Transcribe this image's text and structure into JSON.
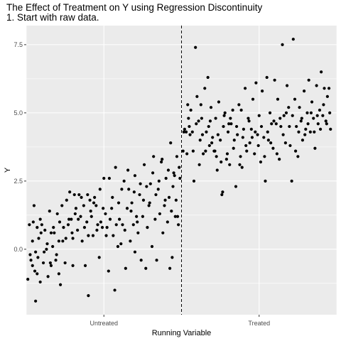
{
  "chart_data": {
    "type": "scatter",
    "title": "The Effect of Treatment on Y using Regression Discontinuity",
    "subtitle": "1. Start with raw data.",
    "xlabel": "Running Variable",
    "ylabel": "Y",
    "x_tick_labels": [
      "Untreated",
      "Treated"
    ],
    "y_ticks": [
      0.0,
      2.5,
      5.0,
      7.5
    ],
    "y_tick_labels": [
      "0.0",
      "2.5",
      "5.0",
      "7.5"
    ],
    "xlim": [
      -1,
      1
    ],
    "ylim": [
      -2.4,
      8.2
    ],
    "cutoff": 0,
    "cutoff_line_style": "dashed",
    "grid": true,
    "panel_background": "#ebebeb",
    "grid_color": "#ffffff",
    "point_color": "#000000",
    "points_untreated": [
      [
        -0.99,
        -1.1
      ],
      [
        -0.98,
        0.9
      ],
      [
        -0.97,
        -0.4
      ],
      [
        -0.96,
        0.3
      ],
      [
        -0.96,
        -0.6
      ],
      [
        -0.95,
        1.6
      ],
      [
        -0.94,
        -1.9
      ],
      [
        -0.94,
        -0.1
      ],
      [
        -0.93,
        0.8
      ],
      [
        -0.93,
        -0.9
      ],
      [
        -0.92,
        0.4
      ],
      [
        -0.91,
        -1.2
      ],
      [
        -0.91,
        1.1
      ],
      [
        -0.9,
        0.9
      ],
      [
        -0.89,
        -0.5
      ],
      [
        -0.88,
        0.7
      ],
      [
        -0.87,
        0.0
      ],
      [
        -0.86,
        -1.0
      ],
      [
        -0.85,
        1.4
      ],
      [
        -0.84,
        0.6
      ],
      [
        -0.84,
        -0.6
      ],
      [
        -0.83,
        0.1
      ],
      [
        -0.82,
        0.6
      ],
      [
        -0.81,
        -0.4
      ],
      [
        -0.8,
        1.3
      ],
      [
        -0.79,
        -0.9
      ],
      [
        -0.79,
        0.3
      ],
      [
        -0.78,
        -1.3
      ],
      [
        -0.77,
        1.6
      ],
      [
        -0.76,
        0.8
      ],
      [
        -0.75,
        -0.5
      ],
      [
        -0.74,
        1.8
      ],
      [
        -0.73,
        0.9
      ],
      [
        -0.72,
        2.1
      ],
      [
        -0.71,
        1.1
      ],
      [
        -0.7,
        -0.6
      ],
      [
        -0.7,
        0.4
      ],
      [
        -0.69,
        2.0
      ],
      [
        -0.68,
        1.5
      ],
      [
        -0.67,
        0.7
      ],
      [
        -0.66,
        2.0
      ],
      [
        -0.65,
        1.2
      ],
      [
        -0.64,
        0.3
      ],
      [
        -0.63,
        1.6
      ],
      [
        -0.62,
        -0.6
      ],
      [
        -0.61,
        1.0
      ],
      [
        -0.6,
        -1.7
      ],
      [
        -0.6,
        0.5
      ],
      [
        -0.59,
        1.8
      ],
      [
        -0.58,
        1.2
      ],
      [
        -0.57,
        0.5
      ],
      [
        -0.56,
        1.9
      ],
      [
        -0.55,
        1.6
      ],
      [
        -0.54,
        0.9
      ],
      [
        -0.53,
        -0.3
      ],
      [
        -0.52,
        1.0
      ],
      [
        -0.51,
        0.8
      ],
      [
        -0.5,
        2.6
      ],
      [
        -0.49,
        1.3
      ],
      [
        -0.48,
        0.8
      ],
      [
        -0.47,
        -0.8
      ],
      [
        -0.46,
        1.1
      ],
      [
        -0.45,
        1.5
      ],
      [
        -0.44,
        0.5
      ],
      [
        -0.43,
        -1.5
      ],
      [
        -0.42,
        0.9
      ],
      [
        -0.41,
        0.1
      ],
      [
        -0.4,
        1.1
      ],
      [
        -0.39,
        0.2
      ],
      [
        -0.38,
        0.9
      ],
      [
        -0.37,
        2.5
      ],
      [
        -0.36,
        -0.7
      ],
      [
        -0.35,
        1.5
      ],
      [
        -0.34,
        2.2
      ],
      [
        -0.33,
        0.3
      ],
      [
        -0.32,
        1.7
      ],
      [
        -0.31,
        0.9
      ],
      [
        -0.3,
        -0.1
      ],
      [
        -0.3,
        2.7
      ],
      [
        -0.29,
        1.2
      ],
      [
        -0.28,
        0.6
      ],
      [
        -0.27,
        2.0
      ],
      [
        -0.26,
        -0.4
      ],
      [
        -0.25,
        1.2
      ],
      [
        -0.24,
        3.1
      ],
      [
        -0.23,
        -0.7
      ],
      [
        -0.22,
        0.8
      ],
      [
        -0.21,
        1.6
      ],
      [
        -0.2,
        2.4
      ],
      [
        -0.19,
        0.1
      ],
      [
        -0.18,
        3.4
      ],
      [
        -0.17,
        1.1
      ],
      [
        -0.16,
        -0.4
      ],
      [
        -0.15,
        2.2
      ],
      [
        -0.14,
        1.3
      ],
      [
        -0.13,
        3.2
      ],
      [
        -0.12,
        0.6
      ],
      [
        -0.11,
        1.6
      ],
      [
        -0.1,
        2.6
      ],
      [
        -0.09,
        1.0
      ],
      [
        -0.08,
        1.9
      ],
      [
        -0.07,
        3.9
      ],
      [
        -0.06,
        -0.3
      ],
      [
        -0.05,
        2.8
      ],
      [
        -0.04,
        1.2
      ],
      [
        -0.03,
        3.4
      ],
      [
        -0.02,
        0.9
      ],
      [
        -0.01,
        2.6
      ],
      [
        -0.015,
        3.0
      ],
      [
        -0.025,
        1.2
      ],
      [
        -0.045,
        2.7
      ],
      [
        -0.065,
        1.4
      ],
      [
        -0.085,
        2.9
      ],
      [
        -0.105,
        1.8
      ],
      [
        -0.125,
        3.3
      ],
      [
        -0.145,
        2.5
      ],
      [
        -0.165,
        2.0
      ],
      [
        -0.185,
        2.8
      ],
      [
        -0.205,
        1.7
      ],
      [
        -0.225,
        2.3
      ],
      [
        -0.245,
        1.8
      ],
      [
        -0.265,
        2.4
      ],
      [
        -0.285,
        1.0
      ],
      [
        -0.305,
        2.1
      ],
      [
        -0.325,
        1.4
      ],
      [
        -0.345,
        2.9
      ],
      [
        -0.365,
        0.7
      ],
      [
        -0.385,
        2.2
      ],
      [
        -0.405,
        1.7
      ],
      [
        -0.425,
        3.0
      ],
      [
        -0.445,
        1.9
      ],
      [
        -0.465,
        2.6
      ],
      [
        -0.485,
        0.5
      ],
      [
        -0.505,
        1.5
      ],
      [
        -0.525,
        2.2
      ],
      [
        -0.545,
        0.7
      ],
      [
        -0.565,
        1.7
      ],
      [
        -0.585,
        1.4
      ],
      [
        -0.605,
        2.0
      ],
      [
        -0.625,
        0.8
      ],
      [
        -0.645,
        1.9
      ],
      [
        -0.665,
        1.1
      ],
      [
        -0.685,
        1.3
      ],
      [
        -0.705,
        0.6
      ],
      [
        -0.725,
        1.1
      ],
      [
        -0.745,
        0.4
      ],
      [
        -0.765,
        0.3
      ],
      [
        -0.785,
        1.0
      ],
      [
        -0.805,
        -0.2
      ],
      [
        -0.825,
        0.8
      ],
      [
        -0.845,
        -0.5
      ],
      [
        -0.865,
        0.2
      ],
      [
        -0.885,
        -0.1
      ],
      [
        -0.905,
        0.6
      ],
      [
        -0.925,
        -0.3
      ],
      [
        -0.945,
        -0.8
      ],
      [
        -0.955,
        1.0
      ],
      [
        -0.975,
        -0.2
      ],
      [
        -0.075,
        -0.7
      ],
      [
        -0.035,
        1.8
      ],
      [
        -0.055,
        2.3
      ]
    ],
    "points_treated": [
      [
        0.01,
        3.6
      ],
      [
        0.02,
        4.4
      ],
      [
        0.03,
        4.3
      ],
      [
        0.04,
        5.3
      ],
      [
        0.05,
        4.5
      ],
      [
        0.06,
        5.1
      ],
      [
        0.07,
        4.3
      ],
      [
        0.08,
        2.5
      ],
      [
        0.09,
        7.4
      ],
      [
        0.1,
        5.6
      ],
      [
        0.11,
        4.7
      ],
      [
        0.12,
        4.0
      ],
      [
        0.13,
        4.8
      ],
      [
        0.14,
        3.5
      ],
      [
        0.15,
        5.9
      ],
      [
        0.16,
        4.3
      ],
      [
        0.17,
        6.3
      ],
      [
        0.18,
        3.8
      ],
      [
        0.19,
        5.2
      ],
      [
        0.2,
        4.1
      ],
      [
        0.21,
        3.6
      ],
      [
        0.22,
        4.8
      ],
      [
        0.23,
        2.9
      ],
      [
        0.24,
        5.4
      ],
      [
        0.25,
        4.0
      ],
      [
        0.26,
        2.0
      ],
      [
        0.27,
        4.5
      ],
      [
        0.28,
        5.0
      ],
      [
        0.29,
        3.3
      ],
      [
        0.3,
        4.3
      ],
      [
        0.31,
        3.1
      ],
      [
        0.32,
        4.6
      ],
      [
        0.33,
        5.1
      ],
      [
        0.34,
        4.0
      ],
      [
        0.35,
        2.3
      ],
      [
        0.36,
        4.2
      ],
      [
        0.37,
        5.3
      ],
      [
        0.38,
        3.4
      ],
      [
        0.39,
        3.0
      ],
      [
        0.4,
        4.4
      ],
      [
        0.41,
        5.9
      ],
      [
        0.42,
        3.6
      ],
      [
        0.43,
        4.8
      ],
      [
        0.44,
        3.9
      ],
      [
        0.45,
        4.4
      ],
      [
        0.46,
        5.5
      ],
      [
        0.47,
        3.5
      ],
      [
        0.48,
        6.1
      ],
      [
        0.49,
        4.2
      ],
      [
        0.5,
        4.9
      ],
      [
        0.51,
        3.2
      ],
      [
        0.52,
        5.8
      ],
      [
        0.53,
        4.1
      ],
      [
        0.54,
        2.5
      ],
      [
        0.55,
        6.3
      ],
      [
        0.56,
        4.0
      ],
      [
        0.57,
        5.0
      ],
      [
        0.58,
        4.6
      ],
      [
        0.59,
        3.7
      ],
      [
        0.6,
        6.2
      ],
      [
        0.61,
        4.6
      ],
      [
        0.62,
        5.5
      ],
      [
        0.63,
        3.3
      ],
      [
        0.64,
        4.5
      ],
      [
        0.65,
        7.5
      ],
      [
        0.66,
        4.9
      ],
      [
        0.67,
        3.9
      ],
      [
        0.68,
        6.0
      ],
      [
        0.69,
        5.2
      ],
      [
        0.7,
        3.8
      ],
      [
        0.71,
        2.5
      ],
      [
        0.72,
        7.7
      ],
      [
        0.73,
        5.5
      ],
      [
        0.74,
        4.5
      ],
      [
        0.75,
        3.4
      ],
      [
        0.76,
        5.2
      ],
      [
        0.77,
        4.7
      ],
      [
        0.78,
        4.0
      ],
      [
        0.79,
        5.8
      ],
      [
        0.8,
        4.4
      ],
      [
        0.81,
        5.0
      ],
      [
        0.82,
        6.2
      ],
      [
        0.83,
        4.3
      ],
      [
        0.84,
        5.4
      ],
      [
        0.85,
        4.8
      ],
      [
        0.86,
        3.7
      ],
      [
        0.87,
        6.0
      ],
      [
        0.88,
        4.6
      ],
      [
        0.89,
        5.1
      ],
      [
        0.9,
        6.5
      ],
      [
        0.91,
        4.9
      ],
      [
        0.92,
        5.9
      ],
      [
        0.93,
        4.7
      ],
      [
        0.94,
        5.6
      ],
      [
        0.95,
        5.9
      ],
      [
        0.96,
        4.4
      ],
      [
        0.015,
        4.3
      ],
      [
        0.035,
        3.5
      ],
      [
        0.055,
        4.2
      ],
      [
        0.075,
        3.6
      ],
      [
        0.095,
        4.6
      ],
      [
        0.115,
        3.1
      ],
      [
        0.135,
        4.2
      ],
      [
        0.155,
        3.6
      ],
      [
        0.175,
        4.5
      ],
      [
        0.195,
        3.9
      ],
      [
        0.215,
        3.6
      ],
      [
        0.235,
        4.2
      ],
      [
        0.255,
        3.2
      ],
      [
        0.275,
        4.9
      ],
      [
        0.295,
        3.5
      ],
      [
        0.315,
        4.8
      ],
      [
        0.335,
        3.7
      ],
      [
        0.355,
        4.5
      ],
      [
        0.375,
        3.1
      ],
      [
        0.395,
        4.1
      ],
      [
        0.415,
        3.8
      ],
      [
        0.435,
        4.7
      ],
      [
        0.455,
        4.1
      ],
      [
        0.475,
        4.3
      ],
      [
        0.495,
        3.8
      ],
      [
        0.515,
        4.5
      ],
      [
        0.535,
        3.4
      ],
      [
        0.555,
        4.3
      ],
      [
        0.575,
        3.9
      ],
      [
        0.595,
        4.7
      ],
      [
        0.615,
        3.5
      ],
      [
        0.635,
        4.8
      ],
      [
        0.655,
        4.2
      ],
      [
        0.675,
        5.0
      ],
      [
        0.695,
        4.5
      ],
      [
        0.715,
        4.9
      ],
      [
        0.735,
        3.6
      ],
      [
        0.755,
        4.3
      ],
      [
        0.775,
        4.8
      ],
      [
        0.795,
        4.2
      ],
      [
        0.815,
        4.6
      ],
      [
        0.835,
        5.0
      ],
      [
        0.855,
        4.3
      ],
      [
        0.875,
        4.9
      ],
      [
        0.895,
        4.4
      ],
      [
        0.915,
        5.3
      ],
      [
        0.935,
        4.6
      ],
      [
        0.955,
        5.0
      ],
      [
        0.265,
        2.1
      ],
      [
        0.045,
        4.8
      ],
      [
        0.125,
        5.3
      ],
      [
        0.185,
        4.7
      ],
      [
        0.225,
        3.4
      ],
      [
        0.305,
        4.6
      ],
      [
        0.385,
        5.1
      ]
    ]
  }
}
